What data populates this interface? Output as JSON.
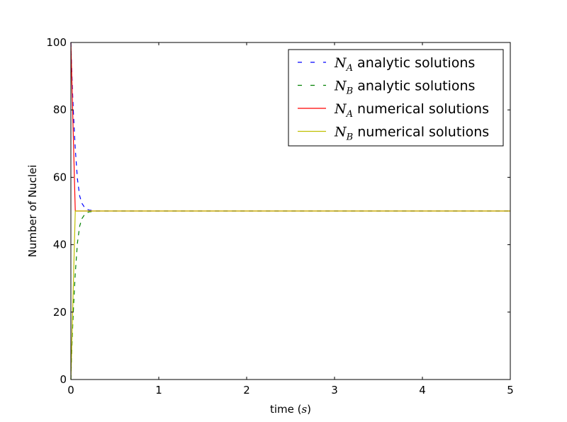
{
  "chart_data": {
    "type": "line",
    "xlabel": {
      "prefix": "time (",
      "math": "s",
      "suffix": ")"
    },
    "ylabel": "Number of Nuclei",
    "xlim": [
      0,
      5
    ],
    "ylim": [
      0,
      100
    ],
    "xticks": [
      0,
      1,
      2,
      3,
      4,
      5
    ],
    "yticks": [
      0,
      20,
      40,
      60,
      80,
      100
    ],
    "grid": false,
    "legend_position": "upper-right",
    "series": [
      {
        "symbol": "N",
        "sub": "A",
        "name": "analytic solutions",
        "style": "dashed",
        "color": "#0000ff",
        "x": [
          0,
          0.01,
          0.02,
          0.03,
          0.05,
          0.075,
          0.1,
          0.125,
          0.15,
          0.2,
          0.25,
          0.3,
          0.4,
          0.5,
          1,
          2,
          3,
          4,
          5
        ],
        "y": [
          100,
          91.7,
          84.6,
          78.5,
          68.4,
          59.4,
          54.5,
          52.3,
          51.3,
          50.3,
          50.1,
          50.0,
          50,
          50,
          50,
          50,
          50,
          50,
          50
        ]
      },
      {
        "symbol": "N",
        "sub": "B",
        "name": "analytic solutions",
        "style": "dashed",
        "color": "#008000",
        "x": [
          0,
          0.01,
          0.02,
          0.03,
          0.05,
          0.075,
          0.1,
          0.125,
          0.15,
          0.2,
          0.25,
          0.3,
          0.4,
          0.5,
          1,
          2,
          3,
          4,
          5
        ],
        "y": [
          0,
          8.3,
          15.4,
          21.5,
          31.6,
          40.6,
          45.5,
          47.7,
          48.7,
          49.7,
          49.9,
          50.0,
          50,
          50,
          50,
          50,
          50,
          50,
          50
        ]
      },
      {
        "symbol": "N",
        "sub": "A",
        "name": "numerical solutions",
        "style": "solid",
        "color": "#ff0000",
        "x": [
          0,
          0.025,
          0.05,
          5
        ],
        "y": [
          100,
          75,
          50,
          50
        ]
      },
      {
        "symbol": "N",
        "sub": "B",
        "name": "numerical solutions",
        "style": "solid",
        "color": "#bfbf00",
        "x": [
          0,
          0.025,
          0.05,
          5
        ],
        "y": [
          0,
          25,
          50,
          50
        ]
      }
    ]
  }
}
